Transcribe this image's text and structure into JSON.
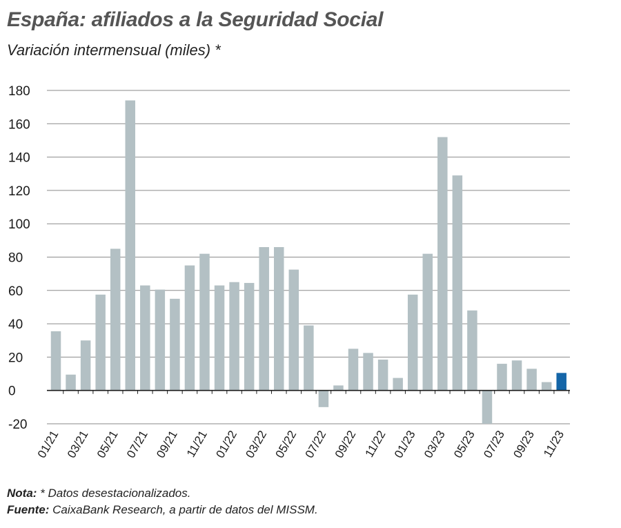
{
  "title": "España: afiliados a la Seguridad Social",
  "subtitle": "Variación intermensual (miles) *",
  "note": {
    "label": "Nota:",
    "text": " * Datos desestacionalizados."
  },
  "source": {
    "label": "Fuente:",
    "text": " CaixaBank Research, a partir de datos del MISSM."
  },
  "colors": {
    "bar": "#b3c0c4",
    "highlight": "#1566a8",
    "grid": "#8a8a8a",
    "axis": "#1a1a1a"
  },
  "chart_data": {
    "type": "bar",
    "title": "España: afiliados a la Seguridad Social",
    "subtitle": "Variación intermensual (miles) *",
    "xlabel": "",
    "ylabel": "",
    "ylim": [
      -20,
      180
    ],
    "yticks": [
      -20,
      0,
      20,
      40,
      60,
      80,
      100,
      120,
      140,
      160,
      180
    ],
    "ytick_labels": [
      "-20",
      "0",
      "20",
      "40",
      "60",
      "80",
      "100",
      "120",
      "140",
      "160",
      "180"
    ],
    "grid": true,
    "categories": [
      "01/21",
      "02/21",
      "03/21",
      "04/21",
      "05/21",
      "06/21",
      "07/21",
      "08/21",
      "09/21",
      "10/21",
      "11/21",
      "12/21",
      "01/22",
      "02/22",
      "03/22",
      "04/22",
      "05/22",
      "06/22",
      "07/22",
      "08/22",
      "09/22",
      "10/22",
      "11/22",
      "12/22",
      "01/23",
      "02/23",
      "03/23",
      "04/23",
      "05/23",
      "06/23",
      "07/23",
      "08/23",
      "09/23",
      "10/23",
      "11/23"
    ],
    "xtick_labels": [
      "01/21",
      "03/21",
      "05/21",
      "07/21",
      "09/21",
      "11/21",
      "01/22",
      "03/22",
      "05/22",
      "07/22",
      "09/22",
      "11/22",
      "01/23",
      "03/23",
      "05/23",
      "07/23",
      "09/23",
      "11/23"
    ],
    "values": [
      35.5,
      9.5,
      30,
      57.5,
      85,
      174,
      63,
      60.5,
      55,
      75,
      82,
      63,
      65,
      64.5,
      86,
      86,
      72.5,
      39,
      -10,
      3,
      25,
      22.5,
      18.5,
      7.5,
      57.5,
      82,
      152,
      129,
      48,
      -20,
      16,
      18,
      13,
      5,
      10.5
    ],
    "highlight_index": 34
  }
}
